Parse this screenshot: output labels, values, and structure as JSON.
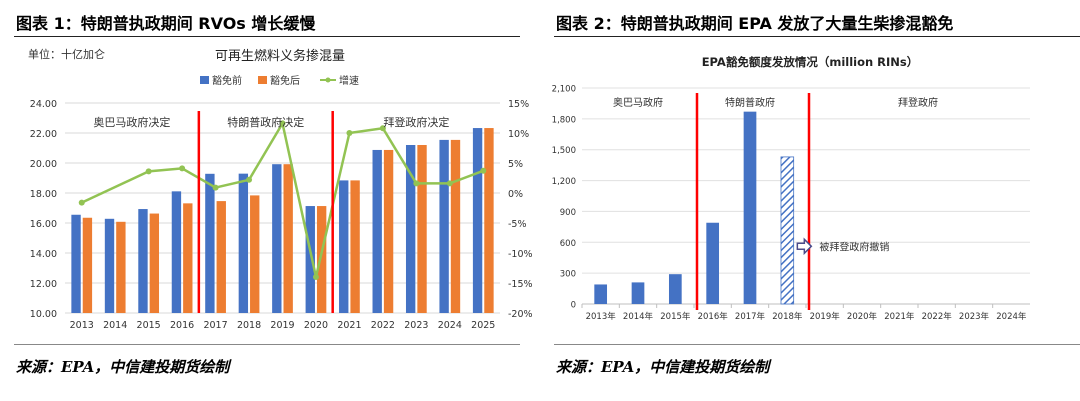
{
  "panels": [
    {
      "title": "图表 1：特朗普执政期间 RVOs 增长缓慢",
      "source": "来源：EPA，中信建投期货绘制"
    },
    {
      "title": "图表 2：特朗普执政期间 EPA 发放了大量生柴掺混豁免",
      "source": "来源：EPA，中信建投期货绘制"
    }
  ],
  "chart_data": [
    {
      "type": "bar",
      "title": "可再生燃料义务掺混量",
      "unit_label": "单位：十亿加仑",
      "categories": [
        "2013",
        "2014",
        "2015",
        "2016",
        "2017",
        "2018",
        "2019",
        "2020",
        "2021",
        "2022",
        "2023",
        "2024",
        "2025"
      ],
      "series": [
        {
          "name": "豁免前",
          "type": "bar",
          "color": "#4472C4",
          "values": [
            16.55,
            16.28,
            16.93,
            18.11,
            19.28,
            19.29,
            19.92,
            17.13,
            18.84,
            20.87,
            21.2,
            21.54,
            22.33
          ]
        },
        {
          "name": "豁免后",
          "type": "bar",
          "color": "#ED7D31",
          "values": [
            16.35,
            16.08,
            16.63,
            17.31,
            17.46,
            17.84,
            19.92,
            17.13,
            18.84,
            20.87,
            21.2,
            21.54,
            22.33
          ]
        },
        {
          "name": "增速",
          "type": "line",
          "axis": "right",
          "color": "#92C353",
          "values": [
            -1.6,
            null,
            3.6,
            4.1,
            0.9,
            2.2,
            11.6,
            -14.0,
            10.0,
            10.8,
            1.6,
            1.6,
            3.7
          ]
        }
      ],
      "ylim": [
        10,
        24
      ],
      "yticks": [
        "10.00",
        "12.00",
        "14.00",
        "16.00",
        "18.00",
        "20.00",
        "22.00",
        "24.00"
      ],
      "y2lim": [
        -20,
        15
      ],
      "y2ticks": [
        "-20%",
        "-15%",
        "-10%",
        "-5%",
        "0%",
        "5%",
        "10%",
        "15%"
      ],
      "dividers_after": [
        "2016",
        "2020"
      ],
      "divider_color": "#FF0000",
      "regions": [
        {
          "label": "奥巴马政府决定",
          "from": "2013",
          "to": "2016"
        },
        {
          "label": "特朗普政府决定",
          "from": "2017",
          "to": "2020"
        },
        {
          "label": "拜登政府决定",
          "from": "2021",
          "to": "2025"
        }
      ],
      "legend_position": "top"
    },
    {
      "type": "bar",
      "title": "EPA豁免额度发放情况（million RINs）",
      "categories": [
        "2013年",
        "2014年",
        "2015年",
        "2016年",
        "2017年",
        "2018年",
        "2019年",
        "2020年",
        "2021年",
        "2022年",
        "2023年",
        "2024年"
      ],
      "values": [
        190,
        210,
        290,
        790,
        1870,
        1430,
        null,
        null,
        null,
        null,
        null,
        null
      ],
      "hatched": [
        "2018年"
      ],
      "color": "#4472C4",
      "ylim": [
        0,
        2100
      ],
      "yticks": [
        "0",
        "300",
        "600",
        "900",
        "1,200",
        "1,500",
        "1,800",
        "2,100"
      ],
      "dividers_after": [
        "2015年",
        "2018年"
      ],
      "divider_color": "#FF0000",
      "regions": [
        {
          "label": "奥巴马政府",
          "from": "2013年",
          "to": "2015年"
        },
        {
          "label": "特朗普政府",
          "from": "2016年",
          "to": "2018年"
        },
        {
          "label": "拜登政府",
          "from": "2019年",
          "to": "2024年"
        }
      ],
      "annotation": {
        "text": "被拜登政府撤销",
        "target": "2018年"
      }
    }
  ]
}
